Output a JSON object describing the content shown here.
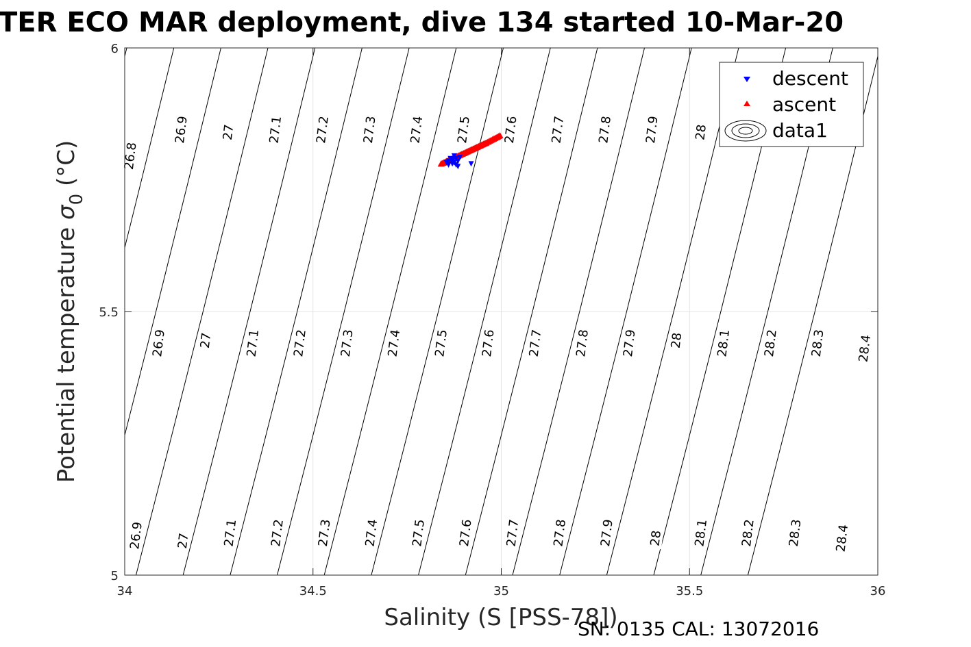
{
  "chart_data": {
    "type": "scatter",
    "title": "TER ECO MAR deployment, dive 134 started 10-Mar-20",
    "xlabel": "Salinity (S [PSS-78])",
    "ylabel_main": "Potential temperature",
    "ylabel_symbol": "σ",
    "ylabel_sub": "0",
    "ylabel_unit": "(°C)",
    "xlim": [
      34,
      36
    ],
    "ylim": [
      5,
      6
    ],
    "xticks": [
      34,
      34.5,
      35,
      35.5,
      36
    ],
    "yticks": [
      5,
      5.5,
      6
    ],
    "xtick_labels": [
      "34",
      "34.5",
      "35",
      "35.5",
      "36"
    ],
    "ytick_labels": [
      "5",
      "5.5",
      "6"
    ],
    "grid": true,
    "legend_position": "top-right",
    "legend": [
      "descent",
      "ascent",
      "data1"
    ],
    "series": [
      {
        "name": "descent",
        "marker": "down-triangle",
        "color": "#0000ff",
        "points": [
          [
            34.86,
            5.785
          ],
          [
            34.87,
            5.78
          ],
          [
            34.88,
            5.79
          ],
          [
            34.875,
            5.782
          ],
          [
            34.885,
            5.785
          ],
          [
            34.865,
            5.79
          ],
          [
            34.855,
            5.782
          ],
          [
            34.87,
            5.788
          ],
          [
            34.88,
            5.778
          ],
          [
            34.89,
            5.792
          ],
          [
            34.92,
            5.78
          ],
          [
            34.86,
            5.778
          ],
          [
            34.875,
            5.795
          ],
          [
            34.885,
            5.775
          ],
          [
            34.87,
            5.785
          ]
        ]
      },
      {
        "name": "ascent",
        "marker": "up-triangle",
        "color": "#ff0000",
        "points": [
          [
            34.84,
            5.78
          ],
          [
            34.87,
            5.79
          ],
          [
            34.9,
            5.8
          ],
          [
            34.93,
            5.81
          ],
          [
            34.96,
            5.82
          ],
          [
            35.0,
            5.835
          ]
        ]
      }
    ],
    "contours": [
      {
        "name": "data1",
        "levels": [
          26.8,
          26.9,
          27,
          27.1,
          27.2,
          27.3,
          27.4,
          27.5,
          27.6,
          27.7,
          27.8,
          27.9,
          28,
          28.1,
          28.2,
          28.3,
          28.4
        ]
      }
    ],
    "contour_labels": [
      {
        "text": "26.9",
        "x": 34.03,
        "y": 5.075
      },
      {
        "text": "27",
        "x": 34.155,
        "y": 5.065
      },
      {
        "text": "27.1",
        "x": 34.28,
        "y": 5.08
      },
      {
        "text": "27.2",
        "x": 34.405,
        "y": 5.08
      },
      {
        "text": "27.3",
        "x": 34.53,
        "y": 5.08
      },
      {
        "text": "27.4",
        "x": 34.655,
        "y": 5.08
      },
      {
        "text": "27.5",
        "x": 34.78,
        "y": 5.08
      },
      {
        "text": "27.6",
        "x": 34.905,
        "y": 5.08
      },
      {
        "text": "27.7",
        "x": 35.03,
        "y": 5.08
      },
      {
        "text": "27.8",
        "x": 35.155,
        "y": 5.08
      },
      {
        "text": "27.9",
        "x": 35.28,
        "y": 5.08
      },
      {
        "text": "28",
        "x": 35.41,
        "y": 5.07
      },
      {
        "text": "28.1",
        "x": 35.53,
        "y": 5.08
      },
      {
        "text": "28.2",
        "x": 35.655,
        "y": 5.08
      },
      {
        "text": "28.3",
        "x": 35.78,
        "y": 5.08
      },
      {
        "text": "28.4",
        "x": 35.905,
        "y": 5.07
      },
      {
        "text": "26.9",
        "x": 34.09,
        "y": 5.44
      },
      {
        "text": "27",
        "x": 34.215,
        "y": 5.445
      },
      {
        "text": "27.1",
        "x": 34.34,
        "y": 5.44
      },
      {
        "text": "27.2",
        "x": 34.465,
        "y": 5.44
      },
      {
        "text": "27.3",
        "x": 34.59,
        "y": 5.44
      },
      {
        "text": "27.4",
        "x": 34.715,
        "y": 5.44
      },
      {
        "text": "27.5",
        "x": 34.84,
        "y": 5.44
      },
      {
        "text": "27.6",
        "x": 34.965,
        "y": 5.44
      },
      {
        "text": "27.7",
        "x": 35.09,
        "y": 5.44
      },
      {
        "text": "27.8",
        "x": 35.215,
        "y": 5.44
      },
      {
        "text": "27.9",
        "x": 35.34,
        "y": 5.44
      },
      {
        "text": "28",
        "x": 35.465,
        "y": 5.445
      },
      {
        "text": "28.1",
        "x": 35.59,
        "y": 5.44
      },
      {
        "text": "28.2",
        "x": 35.715,
        "y": 5.44
      },
      {
        "text": "28.3",
        "x": 35.84,
        "y": 5.44
      },
      {
        "text": "28.4",
        "x": 35.965,
        "y": 5.43
      },
      {
        "text": "26.8",
        "x": 34.015,
        "y": 5.795
      },
      {
        "text": "26.9",
        "x": 34.15,
        "y": 5.845
      },
      {
        "text": "27",
        "x": 34.275,
        "y": 5.84
      },
      {
        "text": "27.1",
        "x": 34.4,
        "y": 5.845
      },
      {
        "text": "27.2",
        "x": 34.525,
        "y": 5.845
      },
      {
        "text": "27.3",
        "x": 34.65,
        "y": 5.845
      },
      {
        "text": "27.4",
        "x": 34.775,
        "y": 5.845
      },
      {
        "text": "27.5",
        "x": 34.9,
        "y": 5.845
      },
      {
        "text": "27.6",
        "x": 35.025,
        "y": 5.845
      },
      {
        "text": "27.7",
        "x": 35.15,
        "y": 5.845
      },
      {
        "text": "27.8",
        "x": 35.275,
        "y": 5.845
      },
      {
        "text": "27.9",
        "x": 35.4,
        "y": 5.845
      },
      {
        "text": "28",
        "x": 35.53,
        "y": 5.84
      }
    ]
  },
  "footer": "SN: 0135  CAL: 13072016"
}
